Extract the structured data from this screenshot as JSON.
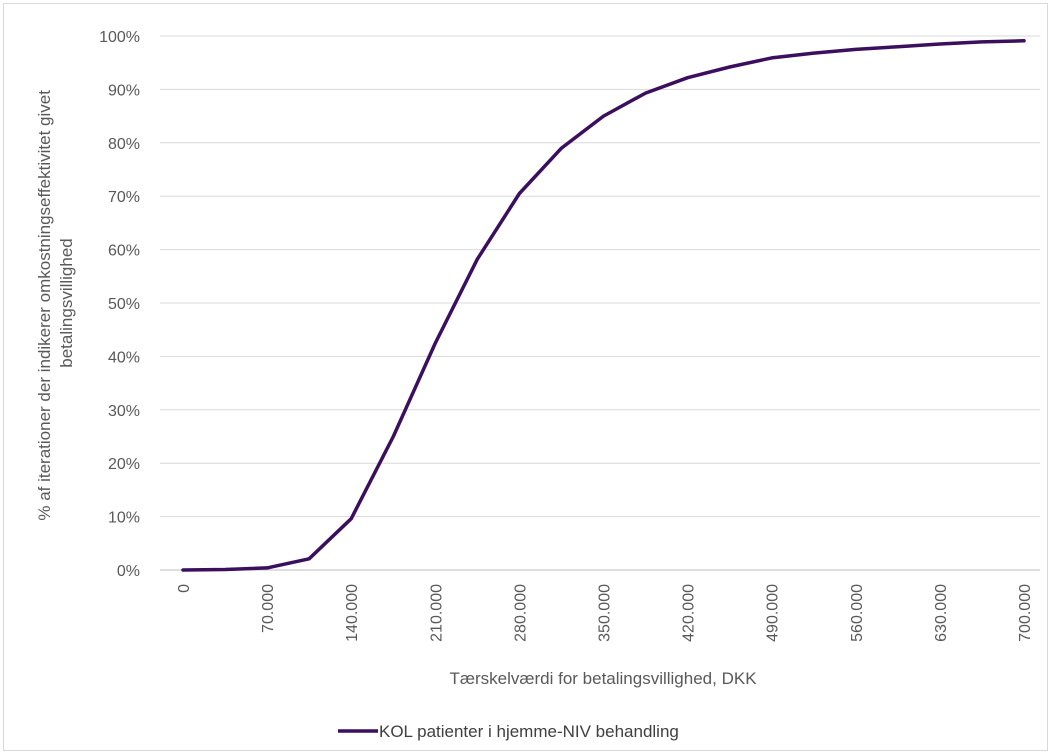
{
  "chart_data": {
    "type": "line",
    "title": "",
    "xlabel": "Tærskelværdi for betalingsvillighed, DKK",
    "ylabel": "% af iterationer der indikerer omkostningseffektivitet givet betalingsvillighed",
    "ylabel_lines": [
      "% af iterationer der indikerer omkostningseffektivitet givet",
      "betalingsvillighed"
    ],
    "ylim": [
      0,
      100
    ],
    "xlim": [
      0,
      700000
    ],
    "x_ticks": [
      0,
      70000,
      140000,
      210000,
      280000,
      350000,
      420000,
      490000,
      560000,
      630000,
      700000
    ],
    "x_tick_labels": [
      "0",
      "70.000",
      "140.000",
      "210.000",
      "280.000",
      "350.000",
      "420.000",
      "490.000",
      "560.000",
      "630.000",
      "700.000"
    ],
    "y_ticks": [
      0,
      10,
      20,
      30,
      40,
      50,
      60,
      70,
      80,
      90,
      100
    ],
    "y_tick_labels": [
      "0%",
      "10%",
      "20%",
      "30%",
      "40%",
      "50%",
      "60%",
      "70%",
      "80%",
      "90%",
      "100%"
    ],
    "grid": "horizontal",
    "legend_position": "bottom",
    "series": [
      {
        "name": "KOL patienter i hjemme-NIV behandling",
        "color": "#3b0f5e",
        "x": [
          0,
          35000,
          70000,
          105000,
          140000,
          175000,
          210000,
          245000,
          280000,
          315000,
          350000,
          385000,
          420000,
          455000,
          490000,
          525000,
          560000,
          595000,
          630000,
          665000,
          700000
        ],
        "y": [
          0,
          0.1,
          0.4,
          2.1,
          9.6,
          25,
          42.5,
          58.2,
          70.5,
          79,
          85,
          89.3,
          92.2,
          94.2,
          95.9,
          96.8,
          97.5,
          98,
          98.5,
          98.9,
          99.1
        ]
      }
    ]
  }
}
